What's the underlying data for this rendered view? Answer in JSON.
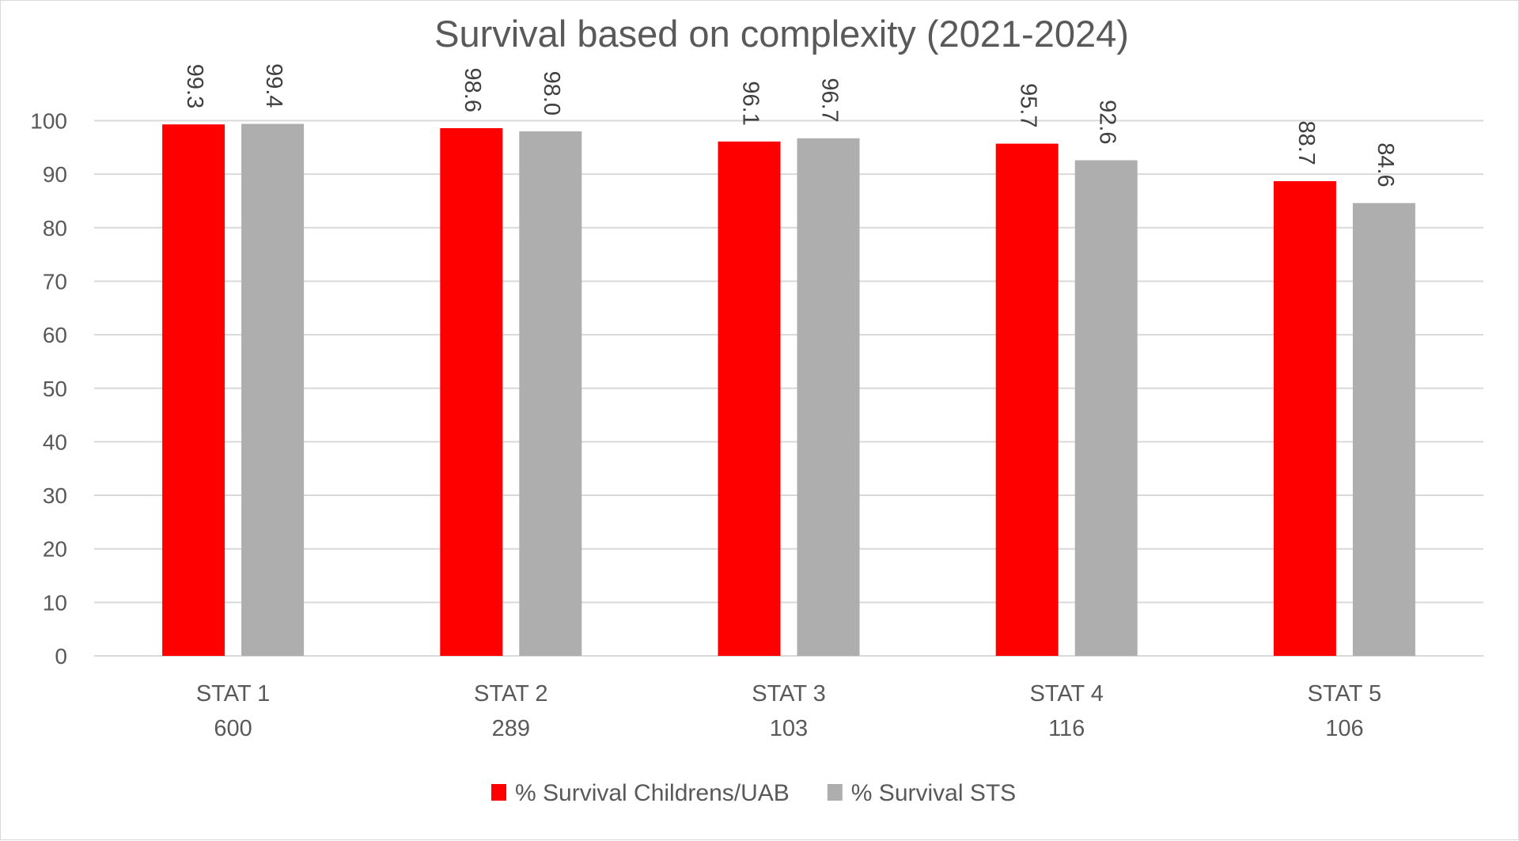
{
  "chart_data": {
    "type": "bar",
    "title": "Survival based on complexity (2021-2024)",
    "categories": [
      "STAT 1",
      "STAT 2",
      "STAT 3",
      "STAT 4",
      "STAT 5"
    ],
    "category_counts": [
      "600",
      "289",
      "103",
      "116",
      "106"
    ],
    "series": [
      {
        "name": "% Survival Childrens/UAB",
        "color": "#ff0000",
        "values": [
          99.3,
          98.6,
          96.1,
          95.7,
          88.7
        ],
        "labels": [
          "99.3",
          "98.6",
          "96.1",
          "95.7",
          "88.7"
        ]
      },
      {
        "name": "% Survival STS",
        "color": "#aeaeae",
        "values": [
          99.4,
          98.0,
          96.7,
          92.6,
          84.6
        ],
        "labels": [
          "99.4",
          "98.0",
          "96.7",
          "92.6",
          "84.6"
        ]
      }
    ],
    "ylim": [
      0,
      100
    ],
    "yticks": [
      "0",
      "10",
      "20",
      "30",
      "40",
      "50",
      "60",
      "70",
      "80",
      "90",
      "100"
    ],
    "xlabel": "",
    "ylabel": "",
    "grid": true,
    "legend_position": "bottom"
  }
}
